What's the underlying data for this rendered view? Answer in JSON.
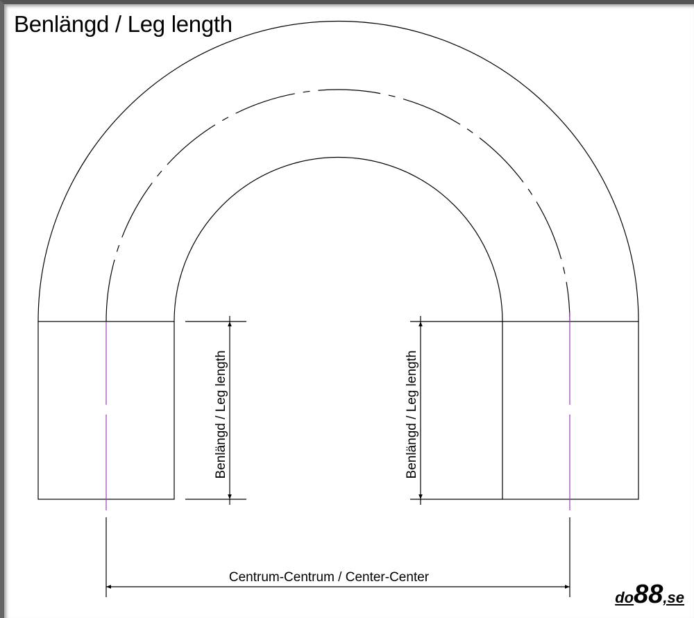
{
  "title": "Benlängd / Leg length",
  "labels": {
    "leg_left": "Benlängd / Leg length",
    "leg_right": "Benlängd / Leg length",
    "center_center": "Centrum-Centrum / Center-Center"
  },
  "logo": {
    "prefix": "do",
    "number": "88",
    "suffix": ",se"
  },
  "colors": {
    "line": "#000000",
    "centerline": "#9b3fb5"
  }
}
